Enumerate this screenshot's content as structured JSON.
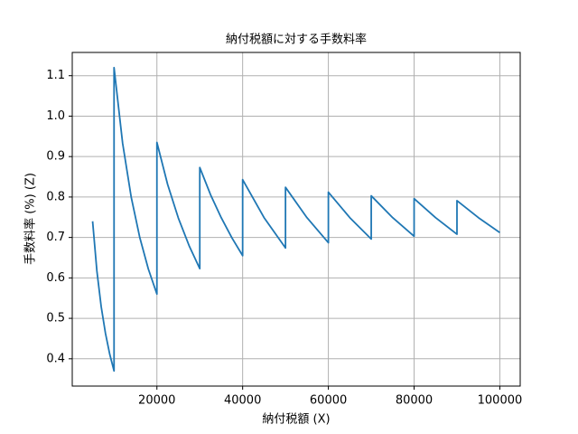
{
  "chart_data": {
    "type": "line",
    "title": "納付税額に対する手数料率",
    "xlabel": "納付税額 (X)",
    "ylabel": "手数料率 (%) (Z)",
    "x": [
      5000,
      6000,
      7000,
      8000,
      9000,
      10000,
      10000,
      12000,
      14000,
      16000,
      18000,
      20000,
      20000,
      22500,
      25000,
      27500,
      30000,
      30000,
      32500,
      35000,
      37500,
      40000,
      40000,
      45000,
      50000,
      50000,
      55000,
      60000,
      60000,
      65000,
      70000,
      70000,
      75000,
      80000,
      80000,
      85000,
      90000,
      90000,
      95000,
      100000
    ],
    "series": [
      {
        "name": "手数料率",
        "color": "#1f77b4",
        "values": [
          0.74,
          0.617,
          0.529,
          0.463,
          0.411,
          0.37,
          1.12,
          0.933,
          0.8,
          0.7,
          0.622,
          0.56,
          0.935,
          0.831,
          0.748,
          0.68,
          0.623,
          0.873,
          0.806,
          0.749,
          0.699,
          0.655,
          0.843,
          0.749,
          0.674,
          0.824,
          0.749,
          0.687,
          0.812,
          0.749,
          0.696,
          0.803,
          0.749,
          0.703,
          0.796,
          0.749,
          0.708,
          0.791,
          0.749,
          0.712
        ]
      }
    ],
    "xlim": [
      250,
      104750
    ],
    "ylim": [
      0.3325,
      1.1575
    ],
    "xticks": [
      20000,
      40000,
      60000,
      80000,
      100000
    ],
    "yticks": [
      0.4,
      0.5,
      0.6,
      0.7,
      0.8,
      0.9,
      {
        "value": 1,
        "label": "1.0"
      },
      1.1
    ],
    "grid": true
  }
}
